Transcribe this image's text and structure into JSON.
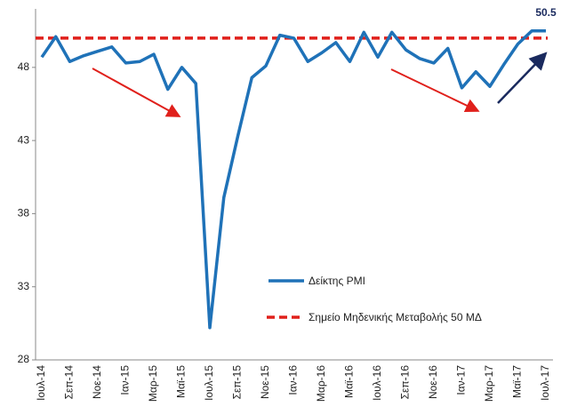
{
  "chart_data": {
    "type": "line",
    "categories": [
      "Ιουλ-14",
      null,
      "Σεπ-14",
      null,
      "Νοε-14",
      null,
      "Ιαν-15",
      null,
      "Μαρ-15",
      null,
      "Μαϊ-15",
      null,
      "Ιουλ-15",
      null,
      "Σεπ-15",
      null,
      "Νοε-15",
      null,
      "Ιαν-16",
      null,
      "Μαρ-16",
      null,
      "Μαϊ-16",
      null,
      "Ιουλ-16",
      null,
      "Σεπ-16",
      null,
      "Νοε-16",
      null,
      "Ιαν-17",
      null,
      "Μαρ-17",
      null,
      "Μαϊ-17",
      null,
      "Ιουλ-17"
    ],
    "series": [
      {
        "name": "Δείκτης PMI",
        "color": "#1f72b8",
        "values": [
          48.7,
          50.1,
          48.4,
          48.8,
          49.1,
          49.4,
          48.3,
          48.4,
          48.9,
          46.5,
          48.0,
          46.9,
          30.2,
          39.1,
          43.3,
          47.3,
          48.1,
          50.2,
          50.0,
          48.4,
          49.0,
          49.7,
          48.4,
          50.4,
          48.7,
          50.4,
          49.2,
          48.6,
          48.3,
          49.3,
          46.6,
          47.7,
          46.7,
          48.2,
          49.6,
          50.5,
          50.5
        ]
      }
    ],
    "reference_line": {
      "name": "Σημείο Μηδενικής Μεταβολής 50 ΜΔ",
      "value": 50,
      "color": "#e0201b"
    },
    "ylim": [
      28,
      52
    ],
    "yticks": [
      28,
      33,
      38,
      43,
      48
    ],
    "grid": false
  }
}
